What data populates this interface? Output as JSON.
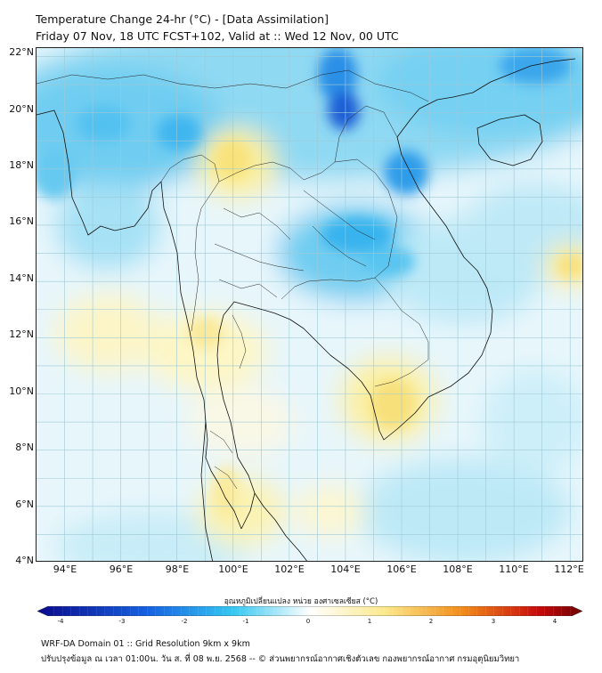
{
  "header": {
    "title_line1": "Temperature Change 24-hr (°C) - [Data Assimilation]",
    "title_line2": "Friday 07 Nov, 18 UTC FCST+102, Valid at :: Wed 12 Nov, 00 UTC"
  },
  "map": {
    "lat_labels": [
      "22°N",
      "20°N",
      "18°N",
      "16°N",
      "14°N",
      "12°N",
      "10°N",
      "8°N",
      "6°N",
      "4°N"
    ],
    "lon_labels": [
      "94°E",
      "96°E",
      "98°E",
      "100°E",
      "102°E",
      "104°E",
      "106°E",
      "108°E",
      "110°E",
      "112°E"
    ],
    "lat_range": [
      4,
      22.3
    ],
    "lon_range": [
      93,
      112.5
    ],
    "field": {
      "variable": "24-hr temperature change",
      "units": "°C",
      "cold_centers": [
        {
          "lon": 103.9,
          "lat": 21.8,
          "value": -2.2
        },
        {
          "lon": 104.0,
          "lat": 20.0,
          "value": -2.2
        },
        {
          "lon": 105.8,
          "lat": 17.8,
          "value": -1.8
        },
        {
          "lon": 104.2,
          "lat": 15.9,
          "value": -1.6
        },
        {
          "lon": 98.3,
          "lat": 19.4,
          "value": -1.5
        }
      ],
      "warm_centers": [
        {
          "lon": 99.5,
          "lat": 18.4,
          "value": 1.2
        },
        {
          "lon": 105.8,
          "lat": 10.0,
          "value": 1.5
        },
        {
          "lon": 99.3,
          "lat": 12.0,
          "value": 1.0
        },
        {
          "lon": 112.0,
          "lat": 14.5,
          "value": 1.0
        }
      ]
    }
  },
  "colorbar": {
    "caption": "อุณหภูมิเปลี่ยนแปลง หน่วย องศาเซลเซียส (°C)",
    "range": [
      -4,
      4
    ],
    "ticks": [
      "-4",
      "-3",
      "-2",
      "-1",
      "0",
      "1",
      "2",
      "3",
      "4"
    ],
    "colors": {
      "deep_blue": "#0a0a8c",
      "blue": "#1560e0",
      "cyan": "#35c8f2",
      "white": "#ffffff",
      "yellow": "#fbe88a",
      "orange": "#f28c1a",
      "red": "#c80a0a",
      "dark_red": "#6e0000"
    }
  },
  "footer": {
    "line1": "WRF-DA Domain 01 :: Grid Resolution 9km x 9km",
    "line2": "ปรับปรุงข้อมูล ณ เวลา 01:00น. วัน ส. ที่ 08 พ.ย. 2568 -- © ส่วนพยากรณ์อากาศเชิงตัวเลข กองพยากรณ์อากาศ กรมอุตุนิยมวิทยา"
  }
}
